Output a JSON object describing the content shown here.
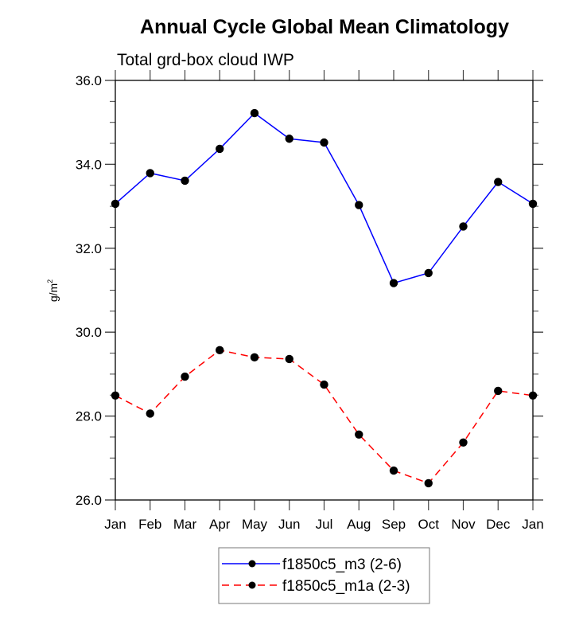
{
  "chart_data": {
    "type": "line",
    "title": "Annual Cycle Global Mean Climatology",
    "subtitle": "Total grd-box cloud IWP",
    "xlabel": "",
    "ylabel": "g/m",
    "ylabel_superscript": "2",
    "categories": [
      "Jan",
      "Feb",
      "Mar",
      "Apr",
      "May",
      "Jun",
      "Jul",
      "Aug",
      "Sep",
      "Oct",
      "Nov",
      "Dec",
      "Jan"
    ],
    "ylim": [
      26.0,
      36.0
    ],
    "yticks": [
      "26.0",
      "28.0",
      "30.0",
      "32.0",
      "34.0",
      "36.0"
    ],
    "ytick_values": [
      26,
      28,
      30,
      32,
      34,
      36
    ],
    "yminor_step": 0.5,
    "grid": false,
    "legend_position": "bottom-center",
    "series": [
      {
        "name": "f1850c5_m3 (2-6)",
        "color": "#0000ff",
        "line_style": "solid",
        "marker": "filled-circle",
        "marker_color": "#000000",
        "values": [
          33.06,
          33.79,
          33.61,
          34.37,
          35.22,
          34.61,
          34.52,
          33.03,
          31.17,
          31.41,
          32.52,
          33.58,
          33.06
        ]
      },
      {
        "name": "f1850c5_m1a (2-3)",
        "color": "#ff0000",
        "line_style": "dashed",
        "marker": "filled-circle",
        "marker_color": "#000000",
        "values": [
          28.49,
          28.06,
          28.94,
          29.57,
          29.4,
          29.36,
          28.75,
          27.56,
          26.7,
          26.4,
          27.37,
          28.6,
          28.49
        ]
      }
    ]
  }
}
